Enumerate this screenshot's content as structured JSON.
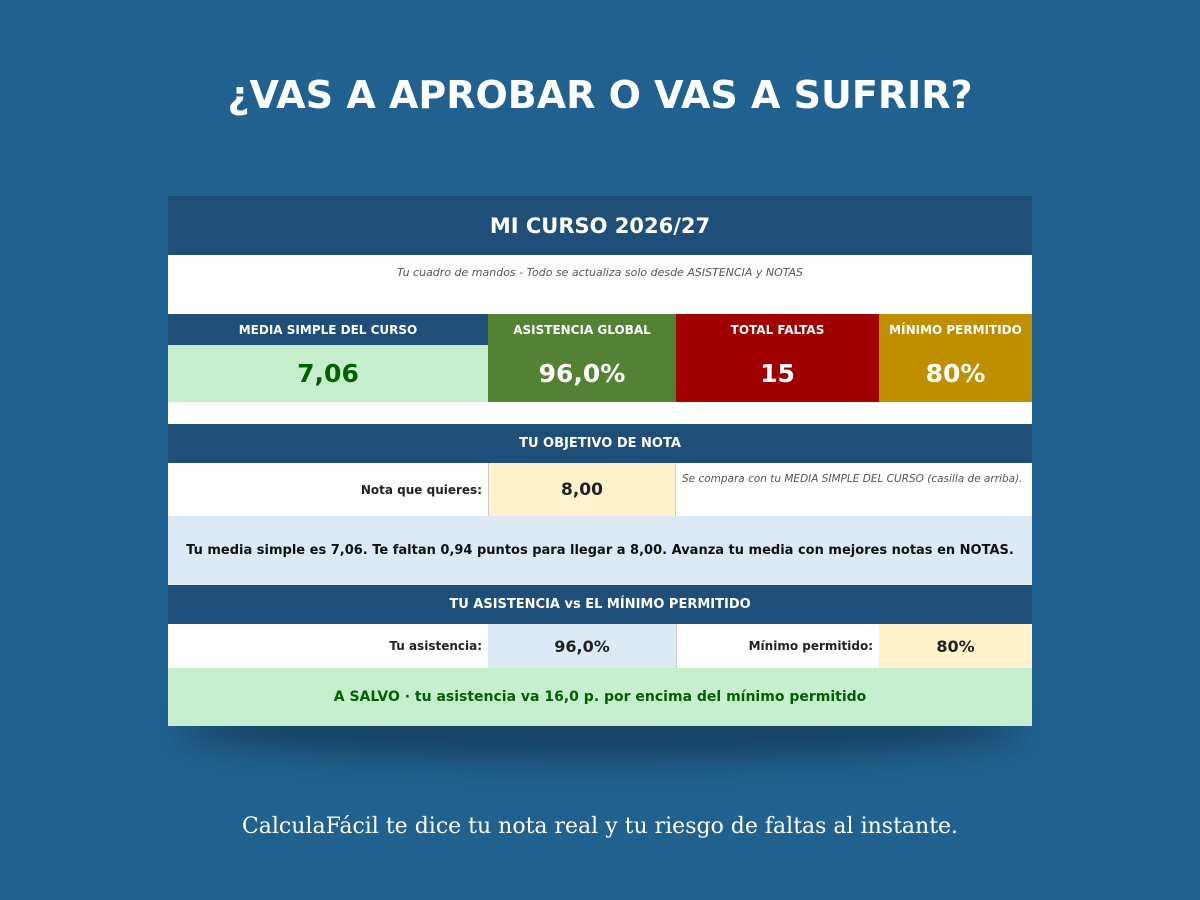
{
  "header": {
    "title": "¿VAS A APROBAR O VAS A SUFRIR?"
  },
  "sheet": {
    "title": "MI CURSO 2026/27",
    "subtitle": "Tu cuadro de mandos - Todo se actualiza solo desde ASISTENCIA y NOTAS",
    "kpis": [
      {
        "label": "MEDIA SIMPLE DEL CURSO",
        "value": "7,06"
      },
      {
        "label": "ASISTENCIA GLOBAL",
        "value": "96,0%"
      },
      {
        "label": "TOTAL FALTAS",
        "value": "15"
      },
      {
        "label": "MÍNIMO PERMITIDO",
        "value": "80%"
      }
    ],
    "goal": {
      "heading": "TU OBJETIVO DE NOTA",
      "label": "Nota que quieres:",
      "value": "8,00",
      "note": "Se compara con tu MEDIA SIMPLE DEL CURSO (casilla de arriba).",
      "message": "Tu media simple es 7,06. Te faltan 0,94 puntos para llegar a 8,00. Avanza tu media con mejores notas en NOTAS."
    },
    "attendance": {
      "heading": "TU ASISTENCIA vs EL MÍNIMO PERMITIDO",
      "label": "Tu asistencia:",
      "value": "96,0%",
      "min_label": "Mínimo permitido:",
      "min_value": "80%",
      "message": "A SALVO · tu asistencia va 16,0 p. por encima del mínimo permitido"
    }
  },
  "footer": {
    "caption": "CalculaFácil te dice tu nota real y tu riesgo de faltas al instante."
  }
}
